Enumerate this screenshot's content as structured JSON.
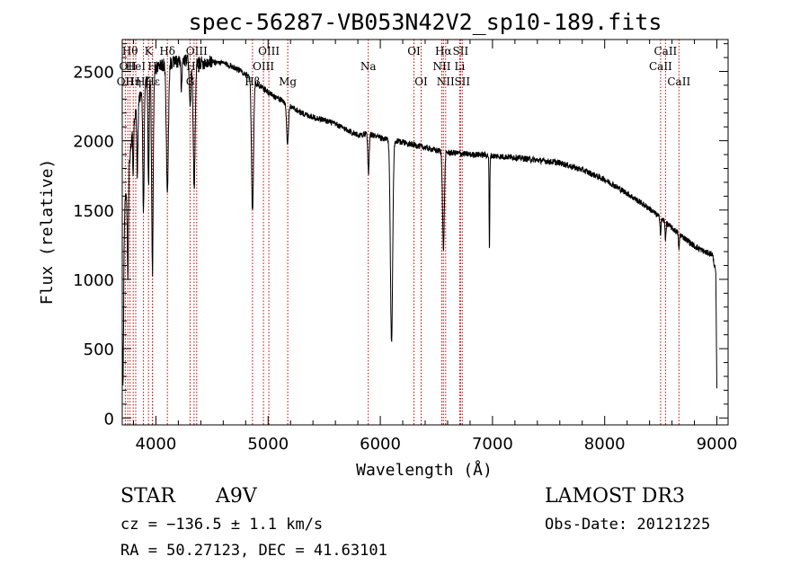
{
  "chart_data": {
    "type": "line",
    "title": "spec-56287-VB053N42V2_sp10-189.fits",
    "xlabel": "Wavelength (Å)",
    "ylabel": "Flux (relative)",
    "xlim": [
      3700,
      9100
    ],
    "ylim": [
      -50,
      2730
    ],
    "xticks": [
      4000,
      5000,
      6000,
      7000,
      8000,
      9000
    ],
    "yticks": [
      0,
      500,
      1000,
      1500,
      2000,
      2500
    ],
    "line_color": "#000000",
    "marker_color": "#cc0000",
    "spectrum": {
      "name": "flux",
      "continuum": [
        [
          3700,
          1350
        ],
        [
          3740,
          1650
        ],
        [
          3800,
          2150
        ],
        [
          3850,
          2300
        ],
        [
          3900,
          2400
        ],
        [
          3950,
          2480
        ],
        [
          4000,
          2520
        ],
        [
          4100,
          2560
        ],
        [
          4200,
          2570
        ],
        [
          4300,
          2580
        ],
        [
          4400,
          2560
        ],
        [
          4500,
          2570
        ],
        [
          4600,
          2560
        ],
        [
          4700,
          2530
        ],
        [
          4800,
          2480
        ],
        [
          4900,
          2410
        ],
        [
          5000,
          2350
        ],
        [
          5100,
          2300
        ],
        [
          5200,
          2250
        ],
        [
          5300,
          2200
        ],
        [
          5400,
          2170
        ],
        [
          5500,
          2150
        ],
        [
          5600,
          2120
        ],
        [
          5700,
          2080
        ],
        [
          5800,
          2040
        ],
        [
          5900,
          2050
        ],
        [
          6000,
          2020
        ],
        [
          6100,
          2000
        ],
        [
          6200,
          1990
        ],
        [
          6300,
          1970
        ],
        [
          6400,
          1950
        ],
        [
          6500,
          1930
        ],
        [
          6600,
          1915
        ],
        [
          6700,
          1910
        ],
        [
          6800,
          1900
        ],
        [
          6900,
          1900
        ],
        [
          7000,
          1890
        ],
        [
          7200,
          1880
        ],
        [
          7400,
          1860
        ],
        [
          7600,
          1840
        ],
        [
          7800,
          1790
        ],
        [
          8000,
          1720
        ],
        [
          8200,
          1620
        ],
        [
          8400,
          1510
        ],
        [
          8600,
          1370
        ],
        [
          8800,
          1240
        ],
        [
          8900,
          1195
        ],
        [
          8960,
          1180
        ],
        [
          8990,
          1050
        ],
        [
          9000,
          200
        ]
      ],
      "features": [
        {
          "center": 3706,
          "depth": 1200,
          "width": 6
        },
        {
          "center": 3750,
          "depth": 700,
          "width": 5
        },
        {
          "center": 3798,
          "depth": 400,
          "width": 4
        },
        {
          "center": 3835,
          "depth": 500,
          "width": 5
        },
        {
          "center": 3889,
          "depth": 900,
          "width": 6
        },
        {
          "center": 3934,
          "depth": 800,
          "width": 5
        },
        {
          "center": 3969,
          "depth": 1450,
          "width": 7
        },
        {
          "center": 4102,
          "depth": 950,
          "width": 9
        },
        {
          "center": 4227,
          "depth": 200,
          "width": 5
        },
        {
          "center": 4305,
          "depth": 350,
          "width": 6
        },
        {
          "center": 4341,
          "depth": 900,
          "width": 9
        },
        {
          "center": 4861,
          "depth": 950,
          "width": 9
        },
        {
          "center": 5173,
          "depth": 300,
          "width": 8
        },
        {
          "center": 5895,
          "depth": 280,
          "width": 6
        },
        {
          "center": 6100,
          "depth": 1460,
          "width": 10
        },
        {
          "center": 6563,
          "depth": 700,
          "width": 8
        },
        {
          "center": 6973,
          "depth": 700,
          "width": 3
        },
        {
          "center": 8498,
          "depth": 120,
          "width": 4
        },
        {
          "center": 8542,
          "depth": 120,
          "width": 4
        },
        {
          "center": 8662,
          "depth": 120,
          "width": 4
        }
      ],
      "noise_amplitude": 22,
      "seed": 56287
    },
    "line_markers": [
      {
        "wavelength": 3727,
        "label": "OII",
        "row": 2
      },
      {
        "wavelength": 3750,
        "label": "OII",
        "row": 1
      },
      {
        "wavelength": 3770,
        "label": "Hθ",
        "row": 0
      },
      {
        "wavelength": 3798,
        "label": "Hη",
        "row": 2
      },
      {
        "wavelength": 3820,
        "label": "HeI",
        "row": 1
      },
      {
        "wavelength": 3889,
        "label": "Hζ",
        "row": 2
      },
      {
        "wavelength": 3934,
        "label": "K",
        "row": 0
      },
      {
        "wavelength": 3969,
        "label": "H",
        "row": 1
      },
      {
        "wavelength": 3970,
        "label": "Hε",
        "row": 2
      },
      {
        "wavelength": 4102,
        "label": "Hδ",
        "row": 0
      },
      {
        "wavelength": 4305,
        "label": "G",
        "row": 2
      },
      {
        "wavelength": 4340,
        "label": "Hγ",
        "row": 1
      },
      {
        "wavelength": 4363,
        "label": "OIII",
        "row": 0
      },
      {
        "wavelength": 4861,
        "label": "Hβ",
        "row": 2
      },
      {
        "wavelength": 4959,
        "label": "OIII",
        "row": 1
      },
      {
        "wavelength": 5007,
        "label": "OIII",
        "row": 0
      },
      {
        "wavelength": 5175,
        "label": "Mg",
        "row": 2
      },
      {
        "wavelength": 5893,
        "label": "Na",
        "row": 1
      },
      {
        "wavelength": 6300,
        "label": "OI",
        "row": 0
      },
      {
        "wavelength": 6364,
        "label": "OI",
        "row": 2
      },
      {
        "wavelength": 6548,
        "label": "NII",
        "row": 1
      },
      {
        "wavelength": 6563,
        "label": "Hα",
        "row": 0
      },
      {
        "wavelength": 6583,
        "label": "NII",
        "row": 2
      },
      {
        "wavelength": 6708,
        "label": "Li",
        "row": 1
      },
      {
        "wavelength": 6716,
        "label": "SII",
        "row": 0
      },
      {
        "wavelength": 6731,
        "label": "SII",
        "row": 2
      },
      {
        "wavelength": 8498,
        "label": "CaII",
        "row": 1
      },
      {
        "wavelength": 8542,
        "label": "CaII",
        "row": 0
      },
      {
        "wavelength": 8662,
        "label": "CaII",
        "row": 2
      }
    ]
  },
  "info": {
    "object_class": "STAR",
    "subclass": "A9V",
    "survey": "LAMOST DR3",
    "redshift": "cz = −136.5 ± 1.1 km/s",
    "obs_date": "Obs-Date: 20121225",
    "coordinates": "RA =  50.27123, DEC =  41.63101"
  }
}
